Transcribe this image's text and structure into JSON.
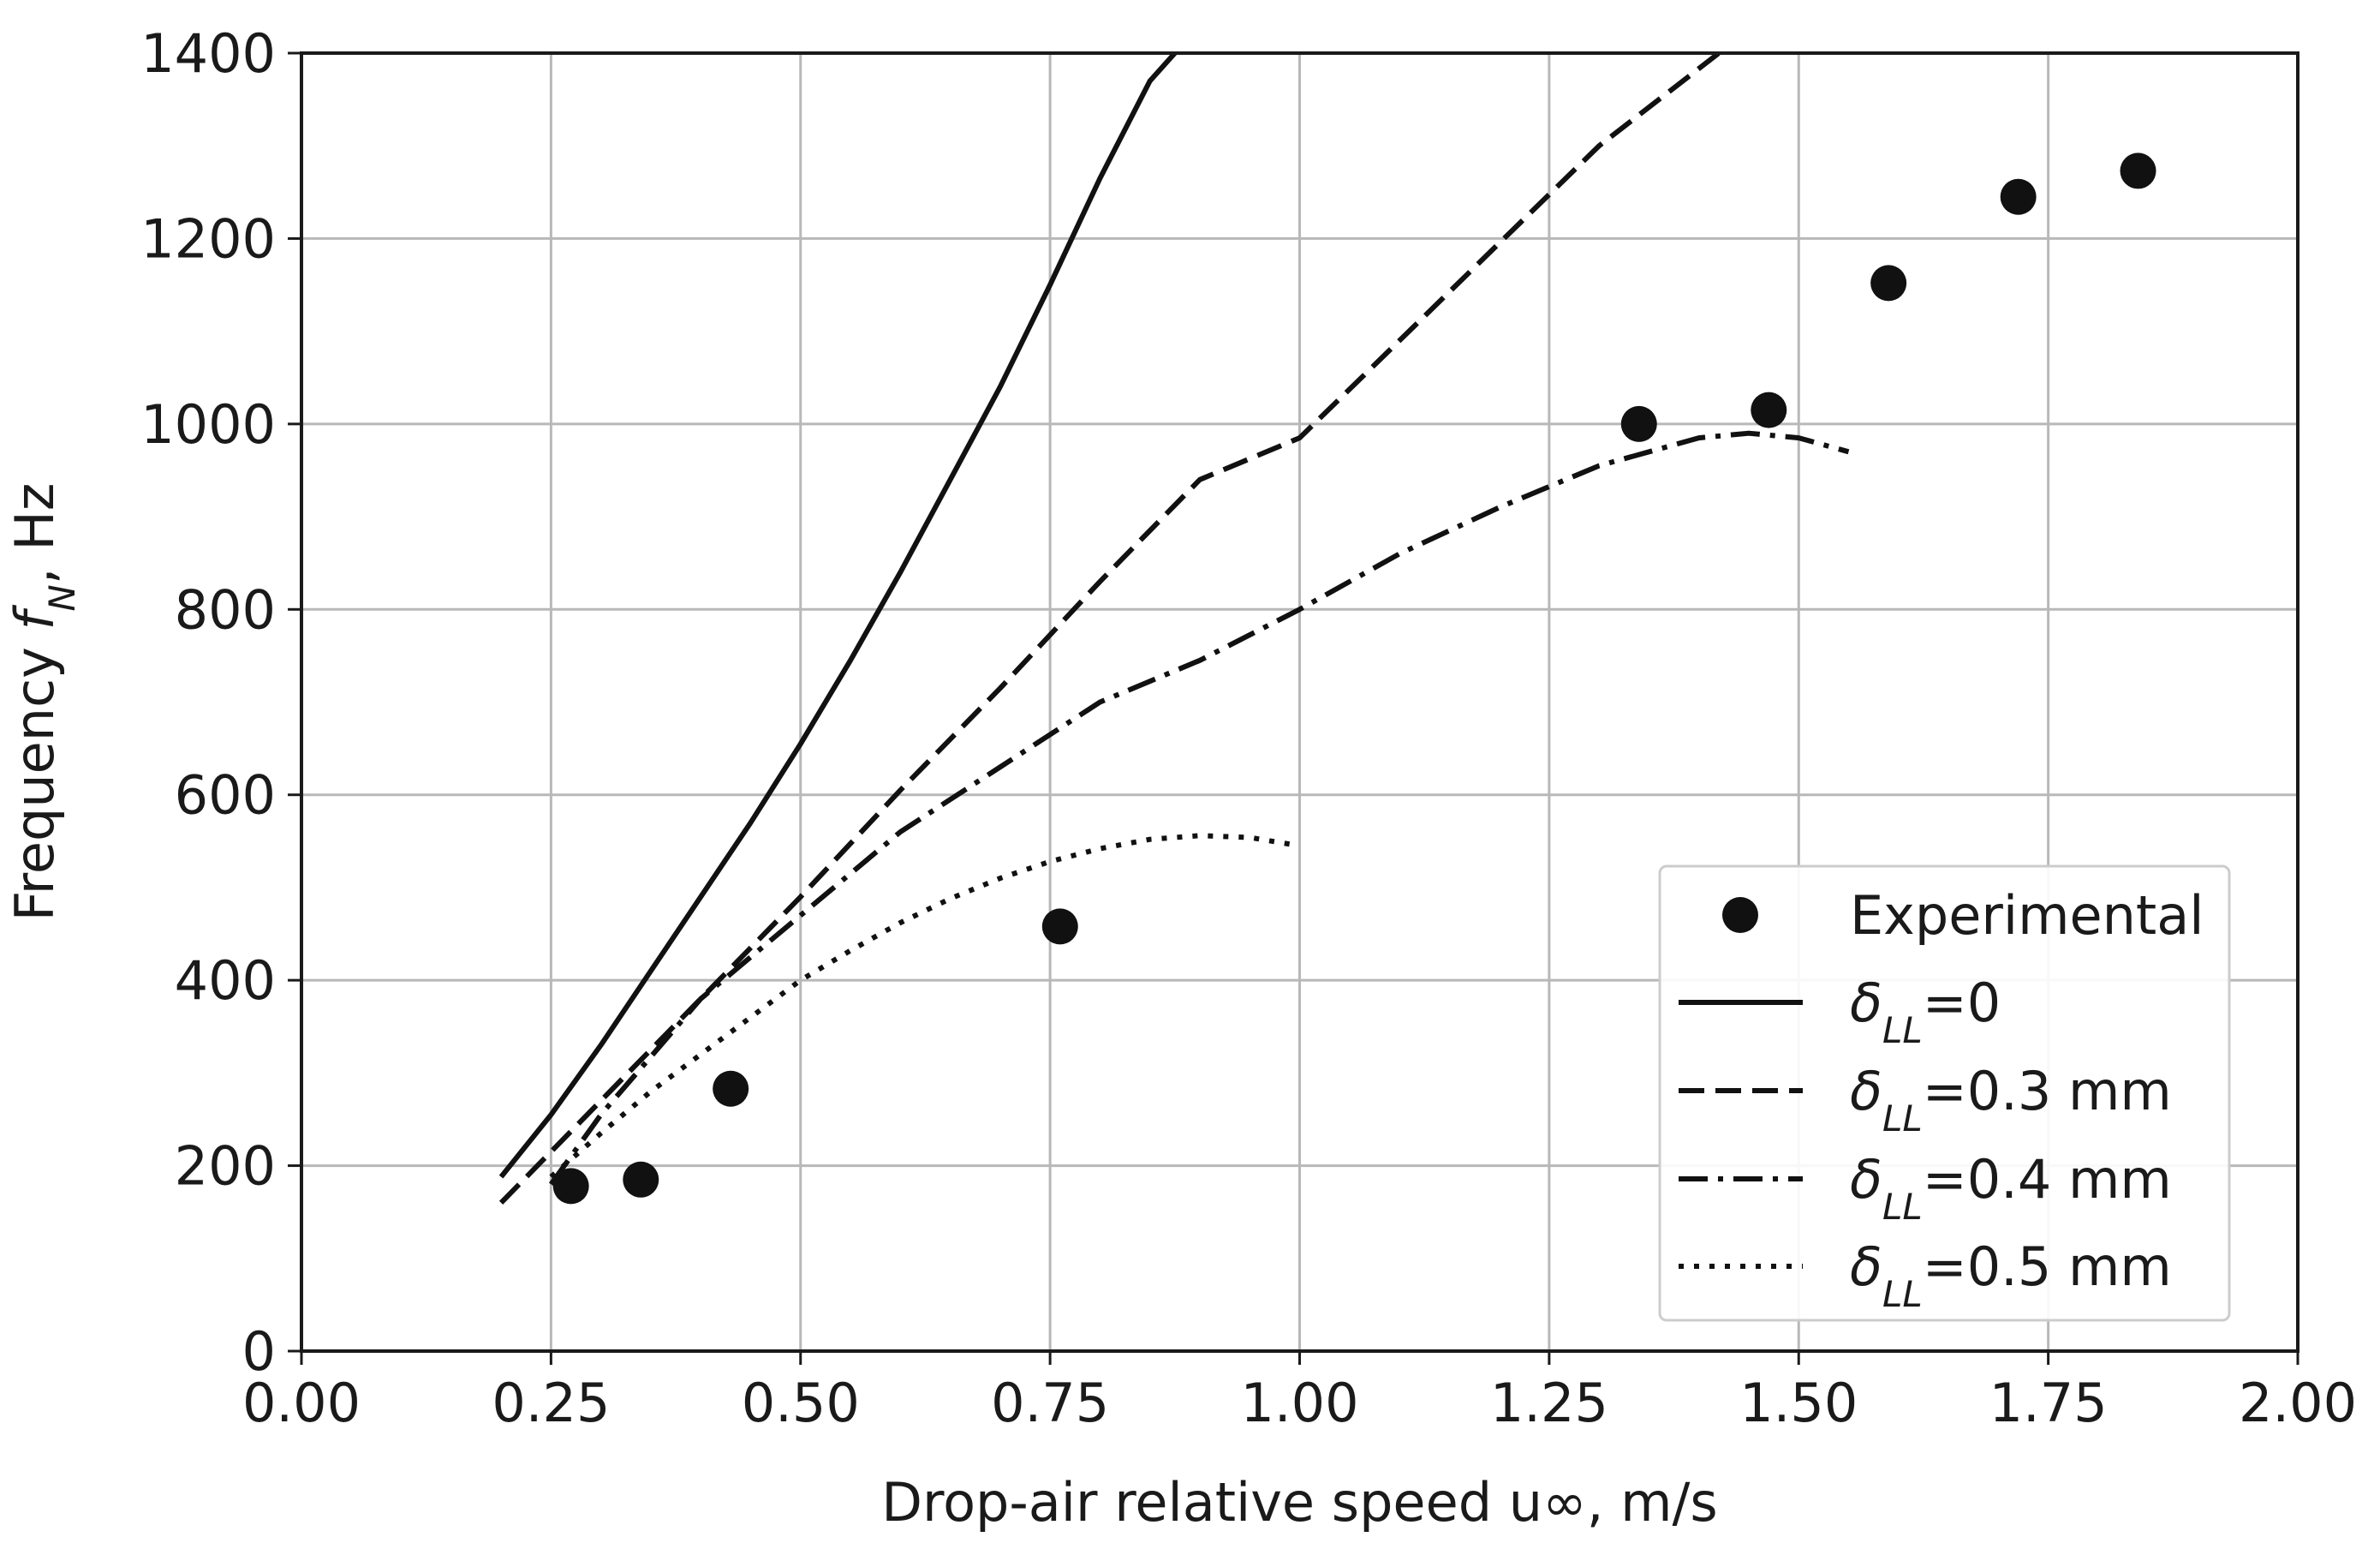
{
  "chart_data": {
    "type": "line",
    "title": "",
    "xlabel": "Drop-air relative speed u∞, m/s",
    "ylabel": "Frequency fN, Hz",
    "ylabel_parts": {
      "prefix": "Frequency ",
      "symbol": "f",
      "subscript": "N",
      "suffix": ", Hz"
    },
    "xlim": [
      0.0,
      2.0
    ],
    "ylim": [
      0,
      1400
    ],
    "xticks": [
      "0.00",
      "0.25",
      "0.50",
      "0.75",
      "1.00",
      "1.25",
      "1.50",
      "1.75",
      "2.00"
    ],
    "yticks": [
      "0",
      "200",
      "400",
      "600",
      "800",
      "1000",
      "1200",
      "1400"
    ],
    "grid": true,
    "legend_position": "bottom-right",
    "colors": {
      "ink": "#111111",
      "grid": "#b8b8b8",
      "frame": "#1a1a1a"
    },
    "series": [
      {
        "name": "Experimental",
        "style": "markers",
        "legend": {
          "symbol": "δ",
          "subscript": "",
          "text": "Experimental"
        },
        "x": [
          0.27,
          0.34,
          0.43,
          0.76,
          1.34,
          1.47,
          1.59,
          1.72,
          1.84
        ],
        "y": [
          178,
          185,
          283,
          458,
          1000,
          1015,
          1152,
          1245,
          1273
        ]
      },
      {
        "name": "δLL=0",
        "style": "solid",
        "legend": {
          "symbol": "δ",
          "subscript": "LL",
          "text": "=0"
        },
        "x": [
          0.2,
          0.25,
          0.3,
          0.35,
          0.4,
          0.45,
          0.5,
          0.55,
          0.6,
          0.65,
          0.7,
          0.75,
          0.8,
          0.85,
          0.875
        ],
        "y": [
          188,
          255,
          330,
          410,
          490,
          570,
          655,
          745,
          840,
          940,
          1040,
          1150,
          1265,
          1370,
          1400
        ]
      },
      {
        "name": "δLL=0.3 mm",
        "style": "dashed",
        "legend": {
          "symbol": "δ",
          "subscript": "LL",
          "text": "=0.3 mm"
        },
        "x": [
          0.2,
          0.3,
          0.4,
          0.5,
          0.6,
          0.7,
          0.8,
          0.9,
          1.0,
          1.1,
          1.2,
          1.3,
          1.42
        ],
        "y": [
          160,
          270,
          380,
          490,
          605,
          715,
          830,
          940,
          985,
          1090,
          1195,
          1300,
          1400
        ]
      },
      {
        "name": "δLL=0.4 mm",
        "style": "dashdot",
        "legend": {
          "symbol": "δ",
          "subscript": "LL",
          "text": "=0.4 mm"
        },
        "x": [
          0.25,
          0.3,
          0.4,
          0.5,
          0.6,
          0.7,
          0.8,
          0.9,
          1.0,
          1.1,
          1.2,
          1.3,
          1.4,
          1.45,
          1.5,
          1.55
        ],
        "y": [
          180,
          255,
          380,
          470,
          560,
          630,
          700,
          745,
          800,
          860,
          910,
          955,
          985,
          990,
          985,
          970
        ]
      },
      {
        "name": "δLL=0.5 mm",
        "style": "dotted",
        "legend": {
          "symbol": "δ",
          "subscript": "LL",
          "text": "=0.5 mm"
        },
        "x": [
          0.25,
          0.3,
          0.35,
          0.4,
          0.45,
          0.5,
          0.55,
          0.6,
          0.65,
          0.7,
          0.75,
          0.8,
          0.85,
          0.9,
          0.95,
          1.0
        ],
        "y": [
          188,
          235,
          280,
          320,
          360,
          400,
          432,
          462,
          488,
          510,
          528,
          542,
          552,
          556,
          554,
          545
        ]
      }
    ]
  }
}
